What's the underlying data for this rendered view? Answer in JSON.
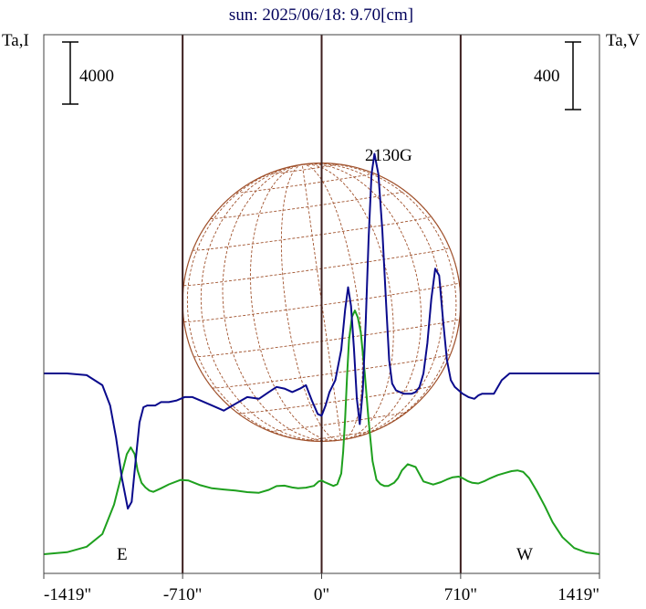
{
  "chart_data": {
    "type": "line",
    "title": "sun: 2025/06/18: 9.70[cm]",
    "left_axis_label": "Ta,I",
    "right_axis_label": "Ta,V",
    "left_scale_bar_label": "4000",
    "right_scale_bar_label": "400",
    "x_tick_labels": [
      {
        "value": -1419,
        "label": "-1419\""
      },
      {
        "value": -710,
        "label": "-710\""
      },
      {
        "value": 0,
        "label": "0\""
      },
      {
        "value": 710,
        "label": "710\""
      },
      {
        "value": 1419,
        "label": "1419\""
      }
    ],
    "xlim": [
      -1419,
      1419
    ],
    "solar_limb_x": [
      -710,
      0,
      710
    ],
    "limb_labels": {
      "east": "E",
      "west": "W"
    },
    "annotations": [
      {
        "text": "2130G",
        "x": 385
      }
    ],
    "colors": {
      "intensity": "#1ea01e",
      "polarization": "#0a0a8c",
      "disk": "#a0522d",
      "limb_lines": "#3c1e1e",
      "title": "#00005a"
    },
    "series": [
      {
        "color": "#1ea01e",
        "x": [
          -1419,
          -1300,
          -1200,
          -1120,
          -1060,
          -1020,
          -995,
          -975,
          -955,
          -940,
          -920,
          -900,
          -880,
          -860,
          -820,
          -780,
          -720,
          -680,
          -620,
          -560,
          -500,
          -440,
          -380,
          -320,
          -270,
          -230,
          -190,
          -150,
          -120,
          -80,
          -40,
          -15,
          0,
          15,
          40,
          60,
          80,
          100,
          110,
          120,
          130,
          140,
          155,
          170,
          185,
          200,
          220,
          240,
          260,
          280,
          300,
          320,
          340,
          355,
          370,
          390,
          410,
          440,
          480,
          520,
          570,
          610,
          640,
          670,
          700,
          720,
          745,
          770,
          800,
          830,
          860,
          900,
          940,
          970,
          1000,
          1030,
          1060,
          1100,
          1140,
          1180,
          1230,
          1290,
          1350,
          1419
        ],
        "y": [
          0,
          130,
          480,
          1300,
          3200,
          5200,
          6450,
          6880,
          6450,
          5400,
          4600,
          4300,
          4100,
          4020,
          4250,
          4500,
          4790,
          4750,
          4450,
          4250,
          4170,
          4100,
          4000,
          3960,
          4150,
          4390,
          4420,
          4300,
          4250,
          4290,
          4400,
          4690,
          4750,
          4650,
          4510,
          4400,
          4510,
          5200,
          6600,
          8800,
          11500,
          13800,
          15300,
          15700,
          15250,
          14300,
          11700,
          8600,
          6000,
          4800,
          4520,
          4400,
          4400,
          4500,
          4600,
          4900,
          5400,
          5800,
          5620,
          4690,
          4490,
          4650,
          4820,
          4960,
          5000,
          4900,
          4720,
          4600,
          4560,
          4700,
          4890,
          5100,
          5250,
          5350,
          5400,
          5300,
          4900,
          4050,
          3100,
          2050,
          1100,
          400,
          120,
          0
        ]
      },
      {
        "color": "#0a0a8c",
        "x": [
          -1419,
          -1300,
          -1200,
          -1120,
          -1080,
          -1050,
          -1020,
          -990,
          -970,
          -950,
          -930,
          -910,
          -890,
          -870,
          -850,
          -820,
          -780,
          -740,
          -700,
          -660,
          -620,
          -560,
          -500,
          -440,
          -380,
          -320,
          -270,
          -230,
          -190,
          -150,
          -110,
          -80,
          -50,
          -20,
          0,
          20,
          40,
          70,
          100,
          120,
          135,
          150,
          165,
          180,
          195,
          210,
          225,
          240,
          255,
          270,
          290,
          310,
          330,
          345,
          360,
          380,
          400,
          420,
          440,
          460,
          480,
          500,
          520,
          540,
          560,
          580,
          600,
          620,
          640,
          660,
          680,
          700,
          720,
          750,
          780,
          800,
          820,
          850,
          880,
          920,
          960,
          1000,
          1040,
          1080,
          1120,
          1160,
          1200,
          1260,
          1320,
          1419
        ],
        "y": [
          0,
          0,
          -10,
          -70,
          -190,
          -380,
          -620,
          -800,
          -760,
          -520,
          -290,
          -200,
          -190,
          -190,
          -190,
          -170,
          -170,
          -160,
          -140,
          -140,
          -160,
          -190,
          -220,
          -180,
          -140,
          -150,
          -110,
          -80,
          -90,
          -110,
          -90,
          -70,
          -160,
          -240,
          -250,
          -190,
          -110,
          -40,
          140,
          380,
          510,
          400,
          150,
          -150,
          -300,
          -100,
          300,
          800,
          1180,
          1300,
          1180,
          850,
          400,
          80,
          -60,
          -100,
          -110,
          -120,
          -120,
          -120,
          -110,
          -80,
          0,
          180,
          440,
          620,
          580,
          320,
          80,
          -40,
          -80,
          -100,
          -120,
          -140,
          -150,
          -130,
          -120,
          -120,
          -120,
          -40,
          0,
          0,
          0,
          0,
          0,
          0,
          0,
          0,
          0,
          0
        ]
      }
    ]
  }
}
